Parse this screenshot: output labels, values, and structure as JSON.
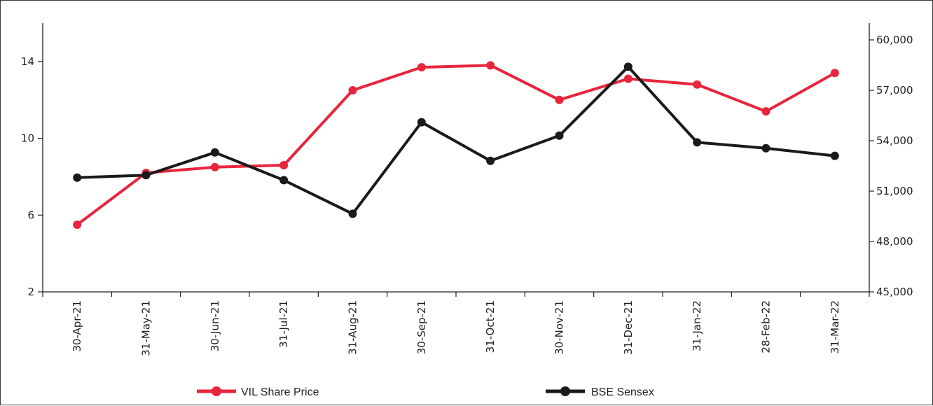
{
  "chart_data": {
    "type": "line",
    "title": "",
    "xlabel": "",
    "ylabel": "",
    "categories": [
      "30-Apr-21",
      "31-May-21",
      "30-Jun-21",
      "31-Jul-21",
      "31-Aug-21",
      "30-Sep-21",
      "31-Oct-21",
      "30-Nov-21",
      "31-Dec-21",
      "31-Jan-22",
      "28-Feb-22",
      "31-Mar-22"
    ],
    "left_axis": {
      "ylim": [
        2,
        16
      ],
      "ticks": [
        2,
        6,
        10,
        14
      ],
      "tick_labels": [
        "2",
        "6",
        "10",
        "14"
      ]
    },
    "right_axis": {
      "ylim": [
        45000,
        61000
      ],
      "ticks": [
        45000,
        48000,
        51000,
        54000,
        57000,
        60000
      ],
      "tick_labels": [
        "45,000",
        "48,000",
        "51,000",
        "54,000",
        "57,000",
        "60,000"
      ]
    },
    "series": [
      {
        "name": "VIL Share Price",
        "axis": "left",
        "color": "#e8253c",
        "values": [
          5.5,
          8.2,
          8.5,
          8.6,
          12.5,
          13.7,
          13.8,
          12.0,
          13.1,
          12.8,
          11.4,
          13.4
        ]
      },
      {
        "name": "BSE Sensex",
        "axis": "right",
        "color": "#1a1a1a",
        "values": [
          51800,
          51950,
          53300,
          51650,
          49650,
          55100,
          52800,
          54300,
          58400,
          53900,
          53550,
          53100
        ]
      }
    ],
    "grid": false,
    "legend_position": "bottom"
  }
}
